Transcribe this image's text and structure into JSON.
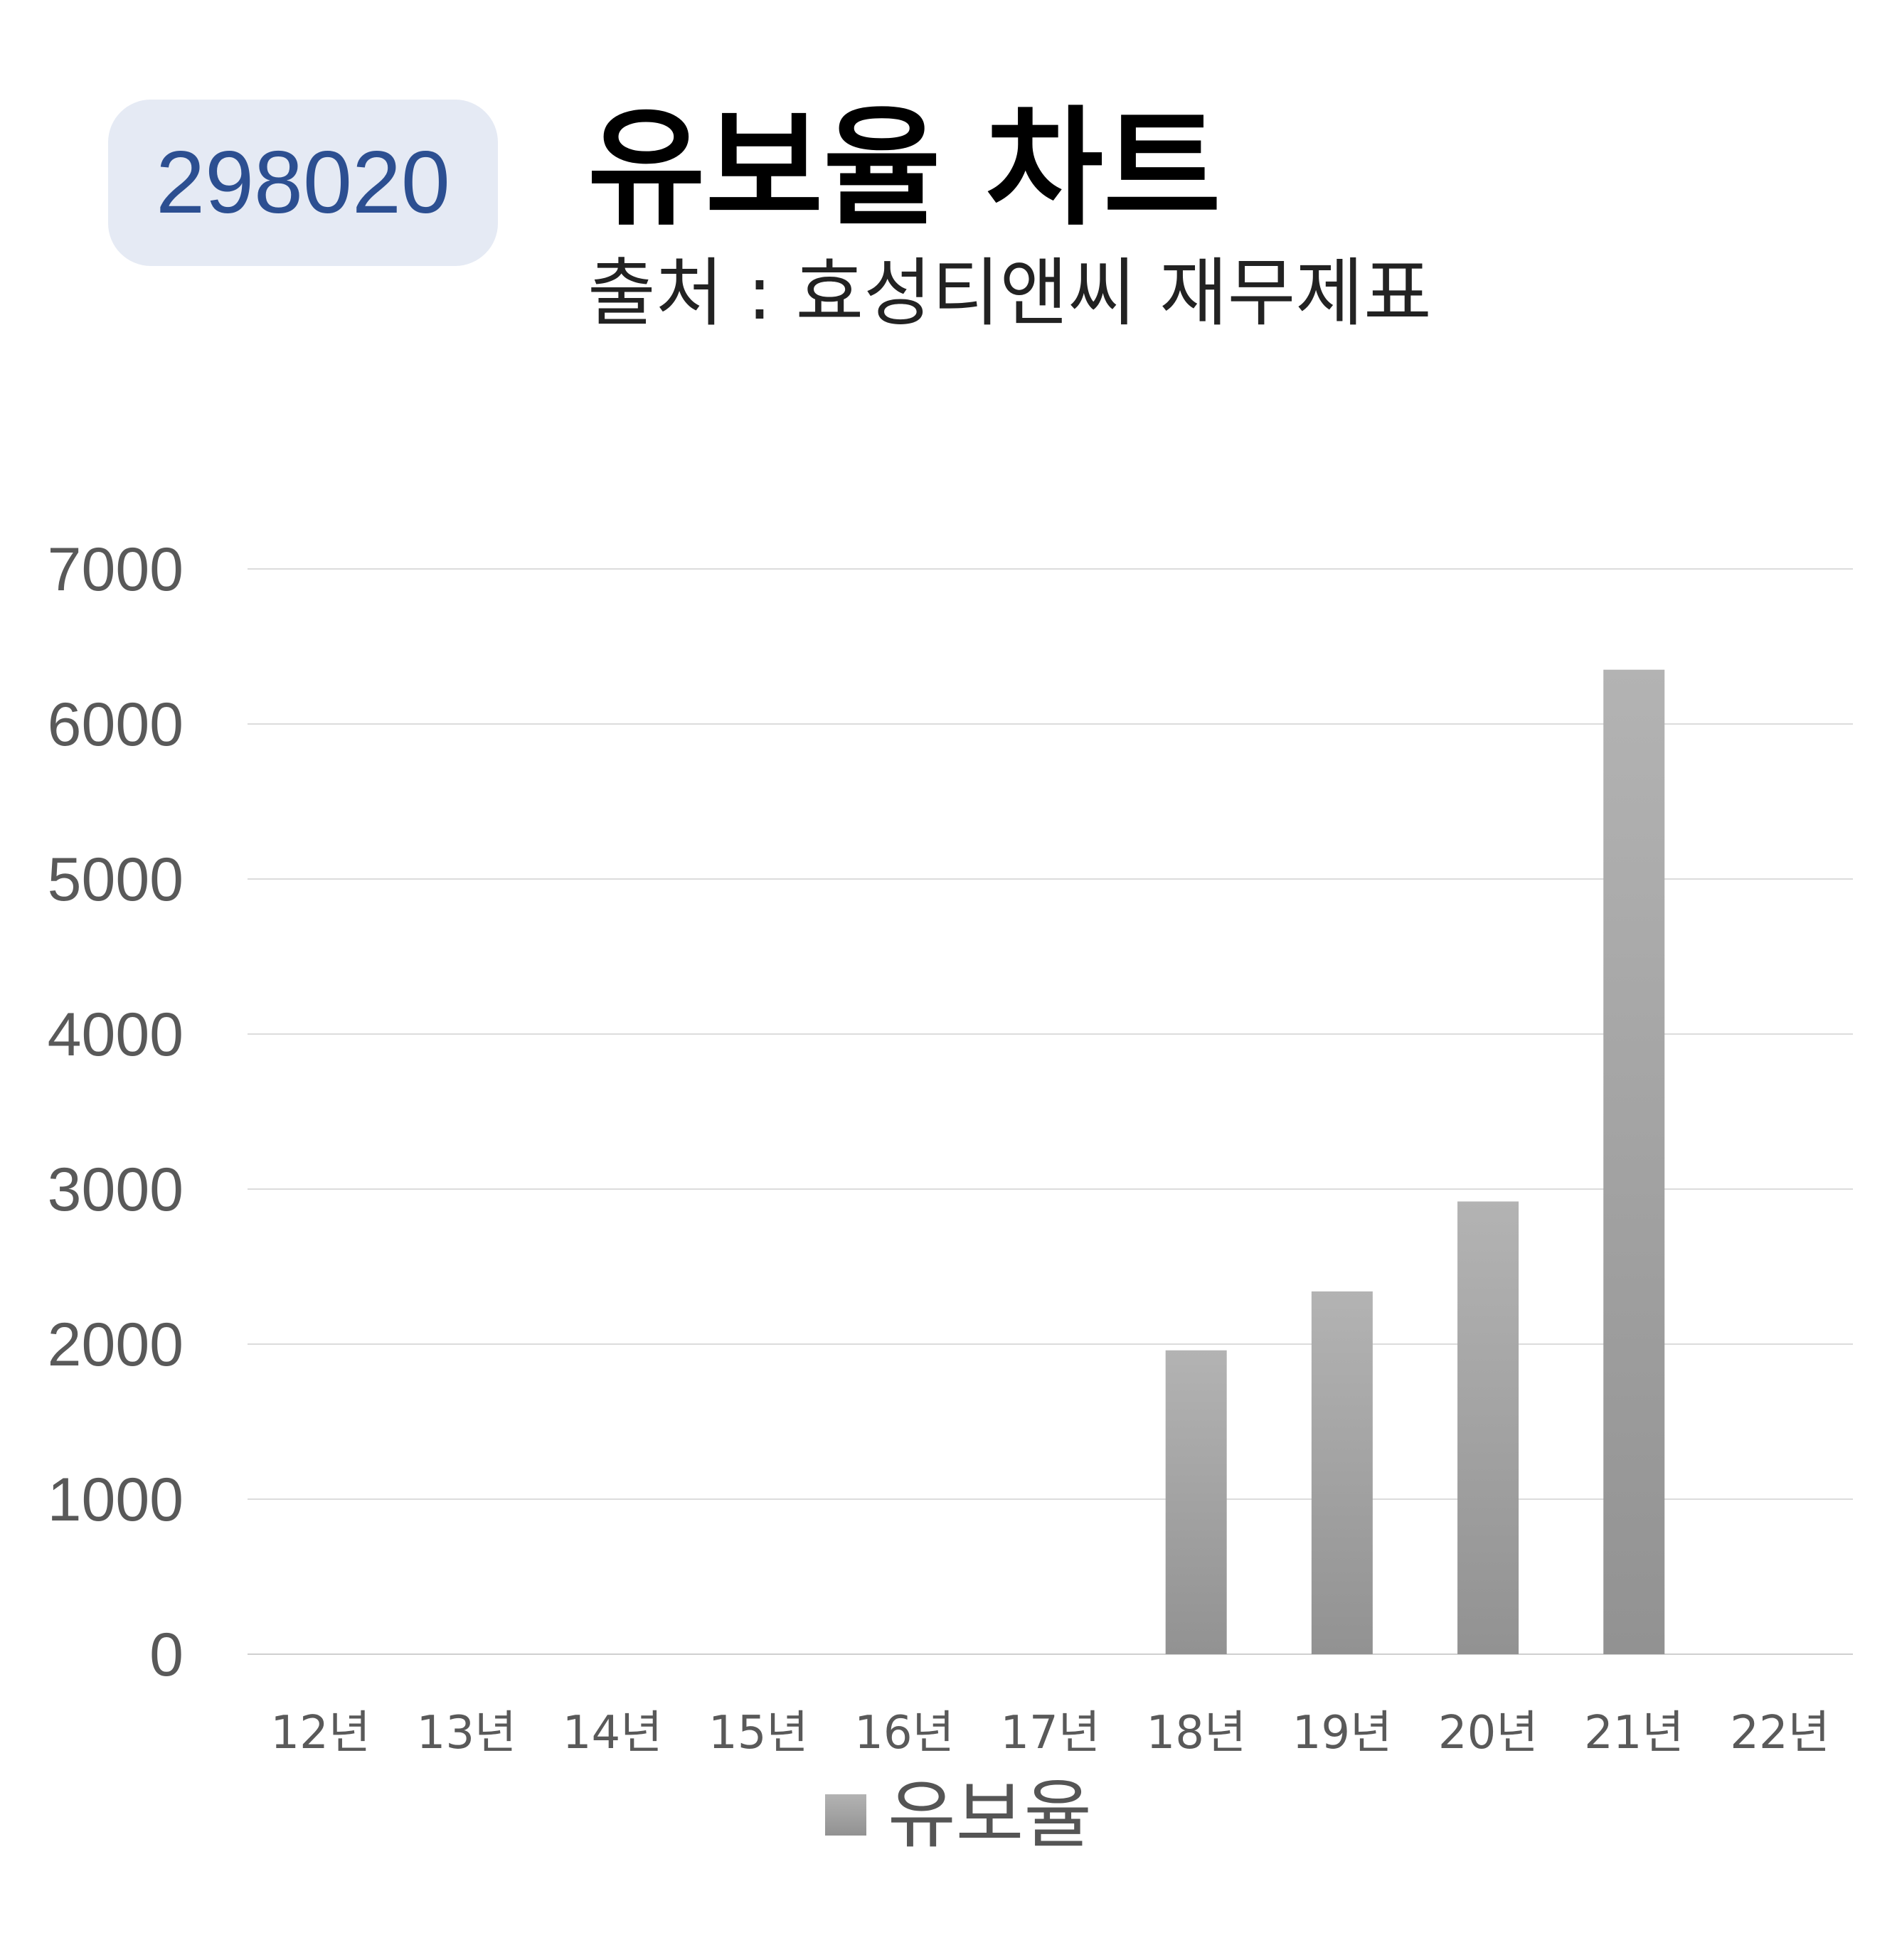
{
  "header": {
    "code": "298020",
    "title": "유보율 차트",
    "subtitle": "출처 : 효성티앤씨 재무제표"
  },
  "colors": {
    "badge_bg": "#e5eaf4",
    "badge_text": "#2c4f91",
    "bar_top": "#b3b3b3",
    "bar_bottom": "#929292",
    "grid": "#d9d9d9",
    "axis_text": "#595959"
  },
  "chart_data": {
    "type": "bar",
    "categories": [
      "12년",
      "13년",
      "14년",
      "15년",
      "16년",
      "17년",
      "18년",
      "19년",
      "20년",
      "21년",
      "22년"
    ],
    "series": [
      {
        "name": "유보율",
        "values": [
          null,
          null,
          null,
          null,
          null,
          null,
          1960,
          2340,
          2920,
          6350,
          null
        ]
      }
    ],
    "yticks": [
      "0",
      "1000",
      "2000",
      "3000",
      "4000",
      "5000",
      "6000",
      "7000"
    ],
    "ylim": [
      0,
      7000
    ],
    "grid": true,
    "legend": "bottom-center",
    "title": "유보율 차트",
    "xlabel": "",
    "ylabel": ""
  }
}
